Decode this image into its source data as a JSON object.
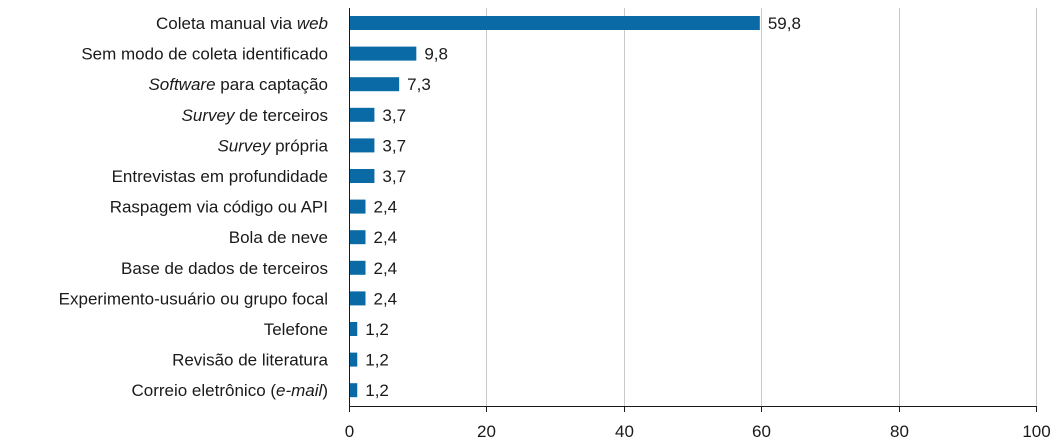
{
  "chart_data": {
    "type": "bar",
    "orientation": "horizontal",
    "categories": [
      [
        {
          "text": "Coleta manual via "
        },
        {
          "text": "web",
          "italic": true
        }
      ],
      [
        {
          "text": "Sem modo de coleta identificado"
        }
      ],
      [
        {
          "text": "Software",
          "italic": true
        },
        {
          "text": " para captação"
        }
      ],
      [
        {
          "text": "Survey",
          "italic": true
        },
        {
          "text": " de terceiros"
        }
      ],
      [
        {
          "text": "Survey",
          "italic": true
        },
        {
          "text": " própria"
        }
      ],
      [
        {
          "text": "Entrevistas em profundidade"
        }
      ],
      [
        {
          "text": "Raspagem via código ou API"
        }
      ],
      [
        {
          "text": "Bola de neve"
        }
      ],
      [
        {
          "text": "Base de dados de terceiros"
        }
      ],
      [
        {
          "text": "Experimento-usuário ou grupo focal"
        }
      ],
      [
        {
          "text": "Telefone"
        }
      ],
      [
        {
          "text": "Revisão de literatura"
        }
      ],
      [
        {
          "text": "Correio eletrônico ("
        },
        {
          "text": "e-mail",
          "italic": true
        },
        {
          "text": ")"
        }
      ]
    ],
    "values": [
      59.8,
      9.8,
      7.3,
      3.7,
      3.7,
      3.7,
      2.4,
      2.4,
      2.4,
      2.4,
      1.2,
      1.2,
      1.2
    ],
    "value_labels": [
      "59,8",
      "9,8",
      "7,3",
      "3,7",
      "3,7",
      "3,7",
      "2,4",
      "2,4",
      "2,4",
      "2,4",
      "1,2",
      "1,2",
      "1,2"
    ],
    "xlim": [
      0,
      100
    ],
    "xticks": [
      0,
      20,
      40,
      60,
      80,
      100
    ],
    "xtick_labels": [
      "0",
      "20",
      "40",
      "60",
      "80",
      "100"
    ],
    "grid": "vertical",
    "bar_color": "#0a6aa6",
    "title": "",
    "xlabel": "",
    "ylabel": ""
  }
}
